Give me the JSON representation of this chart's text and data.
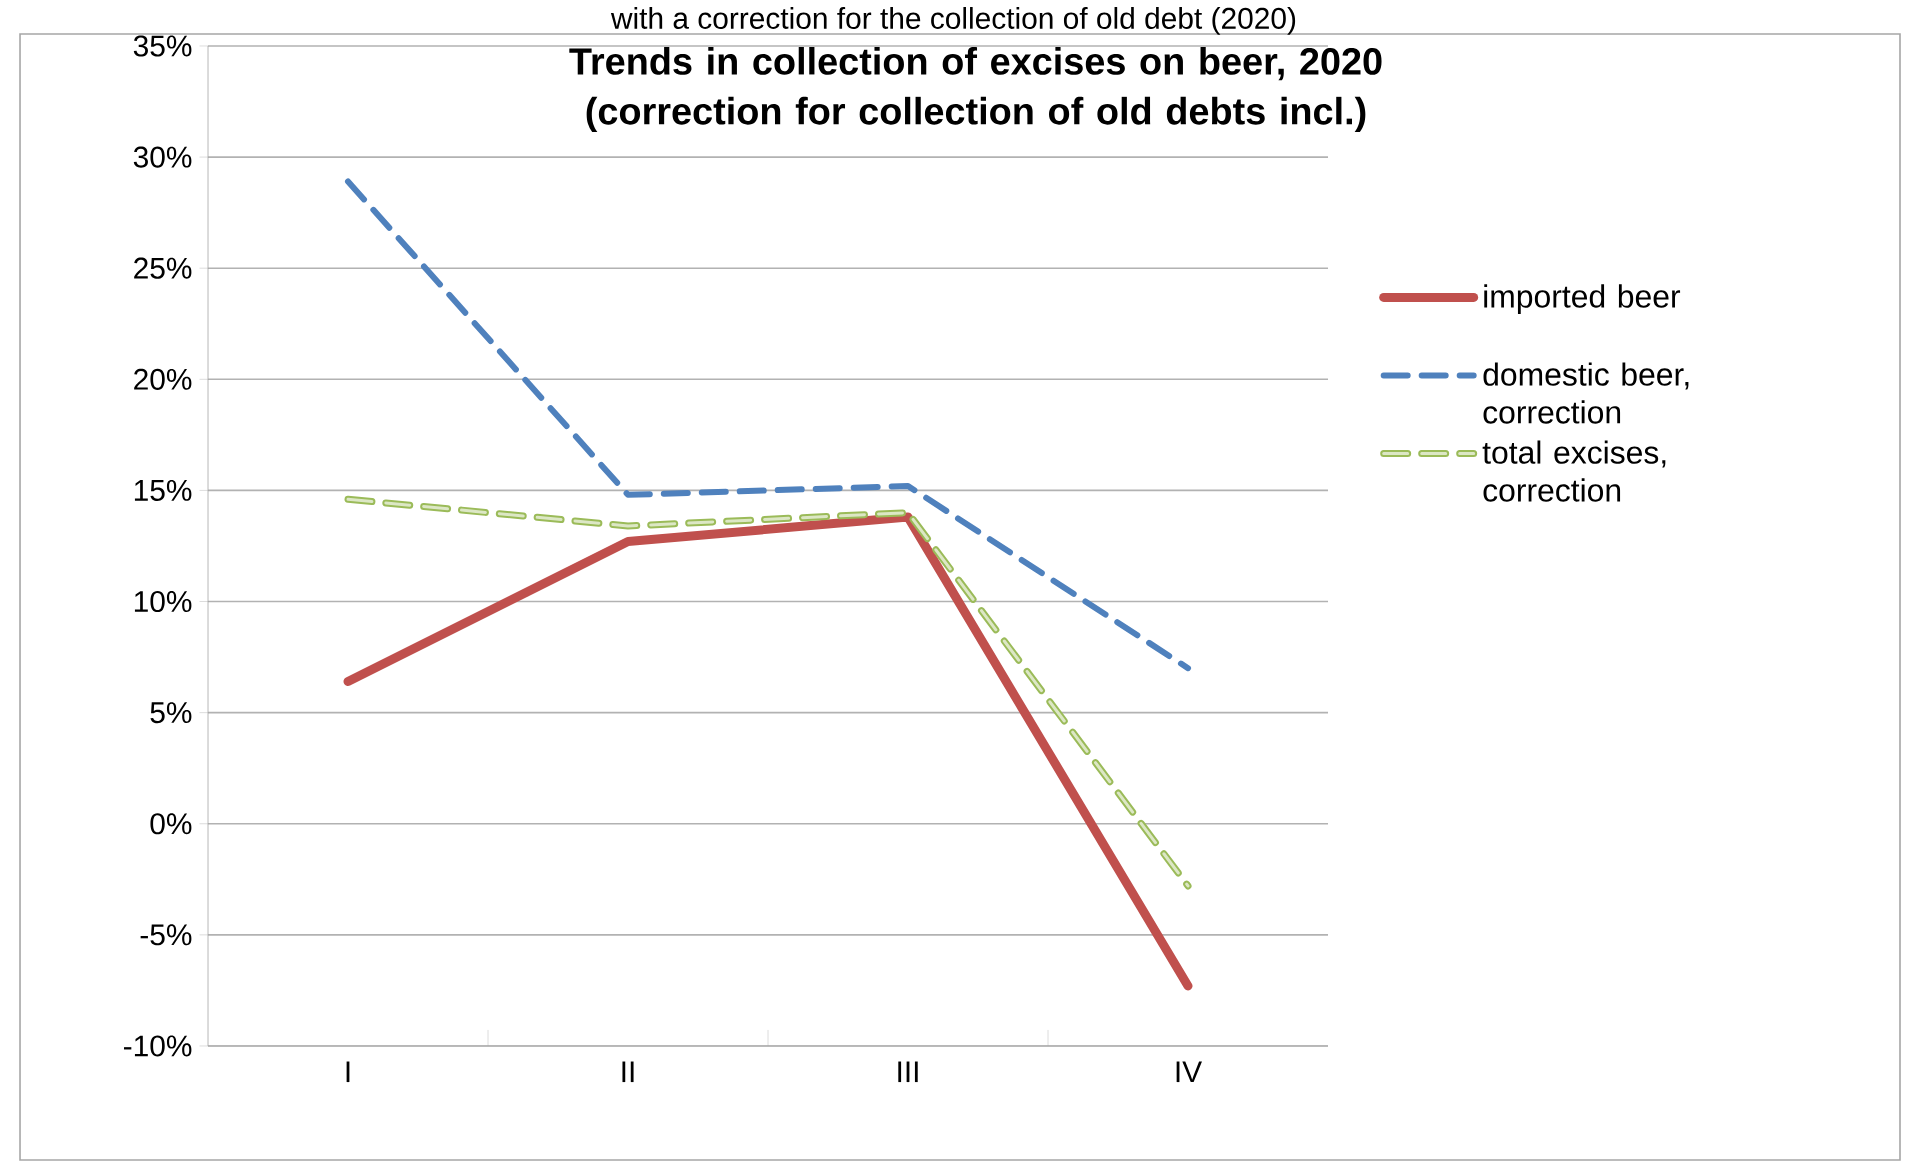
{
  "chart_data": {
    "type": "line",
    "title": "Trends in collection of excises on beer, 2020 (correction for collection of old debts incl.)",
    "subtitle": "with a correction for the collection of old debt (2020)",
    "categories": [
      "I",
      "II",
      "III",
      "IV"
    ],
    "series": [
      {
        "name": "imported beer",
        "color": "#c0504d",
        "line_style": "solid",
        "values": [
          6.4,
          12.7,
          13.8,
          -7.3
        ]
      },
      {
        "name": "domestic beer, correction",
        "color": "#4f81bd",
        "line_style": "dashed",
        "values": [
          28.9,
          14.8,
          15.2,
          7.0
        ]
      },
      {
        "name": "total excises, correction",
        "color": "#9bbb59",
        "line_style": "dashed",
        "values": [
          14.6,
          13.4,
          14.0,
          -2.8
        ]
      }
    ],
    "ylim": [
      -10,
      35
    ],
    "yticks": [
      {
        "value": -10,
        "label": "-10%"
      },
      {
        "value": -5,
        "label": "-5%"
      },
      {
        "value": 0,
        "label": "0%"
      },
      {
        "value": 5,
        "label": "5%"
      },
      {
        "value": 10,
        "label": "10%"
      },
      {
        "value": 15,
        "label": "15%"
      },
      {
        "value": 20,
        "label": "20%"
      },
      {
        "value": 25,
        "label": "25%"
      },
      {
        "value": 30,
        "label": "30%"
      },
      {
        "value": 35,
        "label": "35%"
      }
    ],
    "grid": "y",
    "legend": "right",
    "marker": "none"
  }
}
